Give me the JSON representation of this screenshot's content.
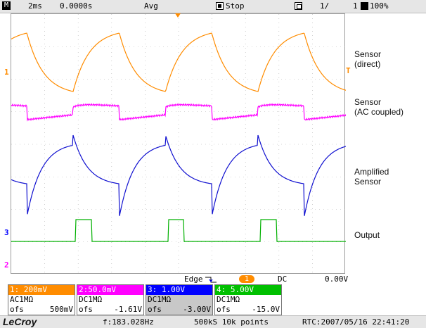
{
  "topbar": {
    "mode_letter": "M",
    "timebase": "2ms",
    "delay": "0.0000s",
    "acq_mode": "Avg",
    "run_state": "Stop",
    "page": "1/",
    "pages": "1",
    "zoom": "100%"
  },
  "labels": {
    "ch1": "Sensor\n(direct)",
    "ch2": "Sensor\n(AC coupled)",
    "ch3": "Amplified\nSensor",
    "ch4": "Output"
  },
  "markers": {
    "ch1_left": "1",
    "ch1_right": "T",
    "ch3_left": "3",
    "ch2_left": "2"
  },
  "trigger": {
    "type": "Edge",
    "source": "1",
    "coupling": "DC",
    "level": "0.00V"
  },
  "channels": [
    {
      "header": "1: 200mV",
      "coupling": "AC1MΩ",
      "ofs_label": "ofs",
      "ofs_value": "500mV",
      "color": "#ff8c00",
      "header_text_color": "#ffffff"
    },
    {
      "header": "2:50.0mV",
      "coupling": "DC1MΩ",
      "ofs_label": "ofs",
      "ofs_value": "-1.61V",
      "color": "#ff00ff",
      "header_text_color": "#ffffff"
    },
    {
      "header": "3: 1.00V",
      "coupling": "DC1MΩ",
      "ofs_label": "ofs",
      "ofs_value": "-3.00V",
      "color": "#0000ff",
      "header_text_color": "#ffffff"
    },
    {
      "header": "4: 5.00V",
      "coupling": "DC1MΩ",
      "ofs_label": "ofs",
      "ofs_value": "-15.0V",
      "color": "#00c000",
      "header_text_color": "#ffffff"
    }
  ],
  "bottombar": {
    "logo": "LeCroy",
    "frequency": "f:183.028Hz",
    "sampling": "500kS 10k points",
    "rtc": "RTC:2007/05/16 22:41:20"
  },
  "colors": {
    "ch1": "#ff8c00",
    "ch2": "#ff00ff",
    "ch3": "#1010d0",
    "ch4": "#00b000",
    "grid": "#b0b0b0"
  }
}
